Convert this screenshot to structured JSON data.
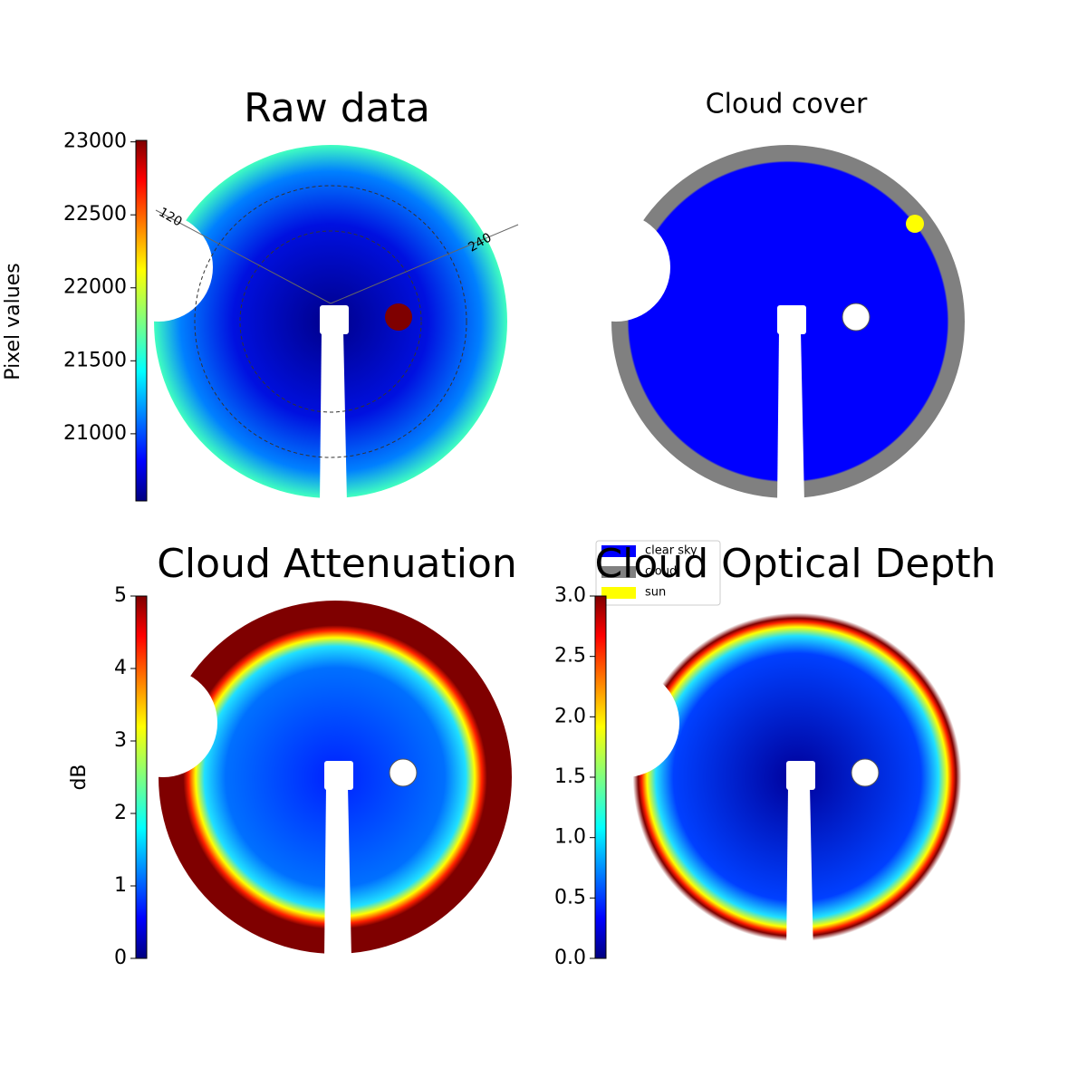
{
  "panels": [
    {
      "title": "Raw data",
      "annotations": [
        "120",
        "240"
      ],
      "colorbar": {
        "label": "Pixel values",
        "lim": [
          20540,
          23010
        ],
        "ticks": [
          21000,
          21500,
          22000,
          22500,
          23000
        ]
      }
    },
    {
      "title": "Cloud cover",
      "legend": [
        {
          "name": "clear sky",
          "color": "#0000ff"
        },
        {
          "name": "cloud",
          "color": "#808080"
        },
        {
          "name": "sun",
          "color": "#ffff00"
        }
      ]
    },
    {
      "title": "Cloud Attenuation",
      "colorbar": {
        "label": "dB",
        "lim": [
          0,
          5
        ],
        "ticks": [
          0,
          1,
          2,
          3,
          4,
          5
        ]
      }
    },
    {
      "title": "Cloud Optical Depth",
      "colorbar": {
        "lim": [
          0,
          3
        ],
        "ticks": [
          {
            "value": 0,
            "label": "0.0"
          },
          {
            "value": 0.5,
            "label": "0.5"
          },
          {
            "value": 1,
            "label": "1.0"
          },
          {
            "value": 1.5,
            "label": "1.5"
          },
          {
            "value": 2,
            "label": "2.0"
          },
          {
            "value": 2.5,
            "label": "2.5"
          },
          {
            "value": 3,
            "label": "3.0"
          }
        ]
      }
    }
  ]
}
